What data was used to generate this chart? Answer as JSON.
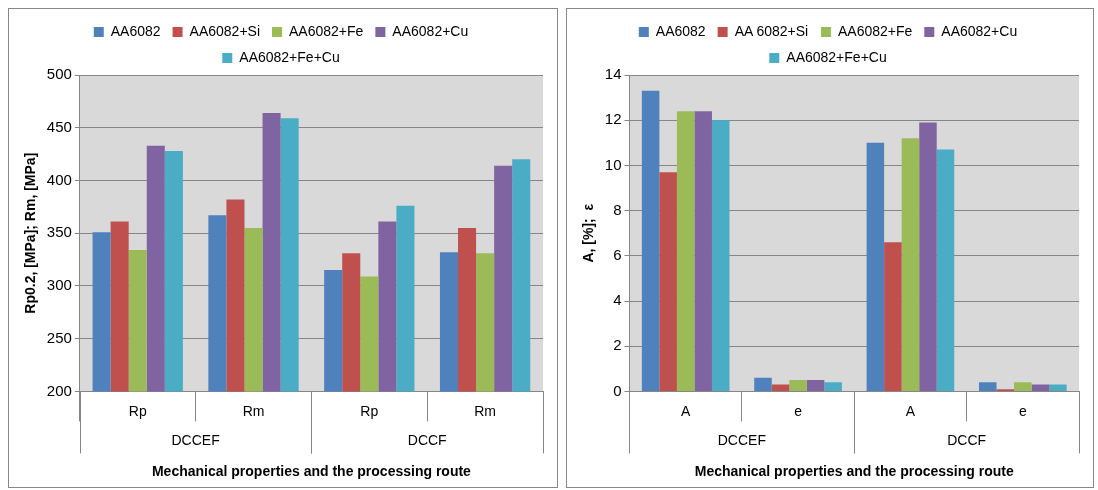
{
  "chart_data": [
    {
      "type": "bar",
      "categories": [
        "Rp",
        "Rm",
        "Rp",
        "Rm"
      ],
      "xlabel": "Mechanical properties and the processing route",
      "ylabel": "Rp0.2, [MPa]; Rm, [MPa]",
      "ylim": [
        200,
        500
      ],
      "yticks": [
        200,
        250,
        300,
        350,
        400,
        450,
        500
      ],
      "grid": "y",
      "legend": "top",
      "annotations": [
        "DCCEF",
        "DCCF"
      ],
      "series": [
        {
          "name": "AA6082",
          "color": "#4f81bd",
          "values": [
            351,
            367,
            315,
            332
          ]
        },
        {
          "name": "AA6082+Si",
          "color": "#c0504d",
          "values": [
            361,
            382,
            331,
            355
          ]
        },
        {
          "name": "AA6082+Fe",
          "color": "#9bbb59",
          "values": [
            334,
            355,
            309,
            331
          ]
        },
        {
          "name": "AA6082+Cu",
          "color": "#8064a2",
          "values": [
            433,
            464,
            361,
            414
          ]
        },
        {
          "name": "AA6082+Fe+Cu",
          "color": "#4bacc6",
          "values": [
            428,
            459,
            376,
            420
          ]
        }
      ]
    },
    {
      "type": "bar",
      "categories": [
        "A",
        "e",
        "A",
        "e"
      ],
      "xlabel": "Mechanical properties and the processing route",
      "ylabel": "A, [%];  ε",
      "ylim": [
        0,
        14
      ],
      "yticks": [
        0,
        2,
        4,
        6,
        8,
        10,
        12,
        14
      ],
      "grid": "y",
      "legend": "top",
      "annotations": [
        "DCCEF",
        "DCCF"
      ],
      "series": [
        {
          "name": "AA6082",
          "color": "#4f81bd",
          "values": [
            13.3,
            0.6,
            11.0,
            0.4
          ]
        },
        {
          "name": "AA 6082+Si",
          "color": "#c0504d",
          "values": [
            9.7,
            0.3,
            6.6,
            0.1
          ]
        },
        {
          "name": "AA6082+Fe",
          "color": "#9bbb59",
          "values": [
            12.4,
            0.5,
            11.2,
            0.4
          ]
        },
        {
          "name": "AA6082+Cu",
          "color": "#8064a2",
          "values": [
            12.4,
            0.5,
            11.9,
            0.3
          ]
        },
        {
          "name": "AA6082+Fe+Cu",
          "color": "#4bacc6",
          "values": [
            12.0,
            0.4,
            10.7,
            0.3
          ]
        }
      ]
    }
  ]
}
